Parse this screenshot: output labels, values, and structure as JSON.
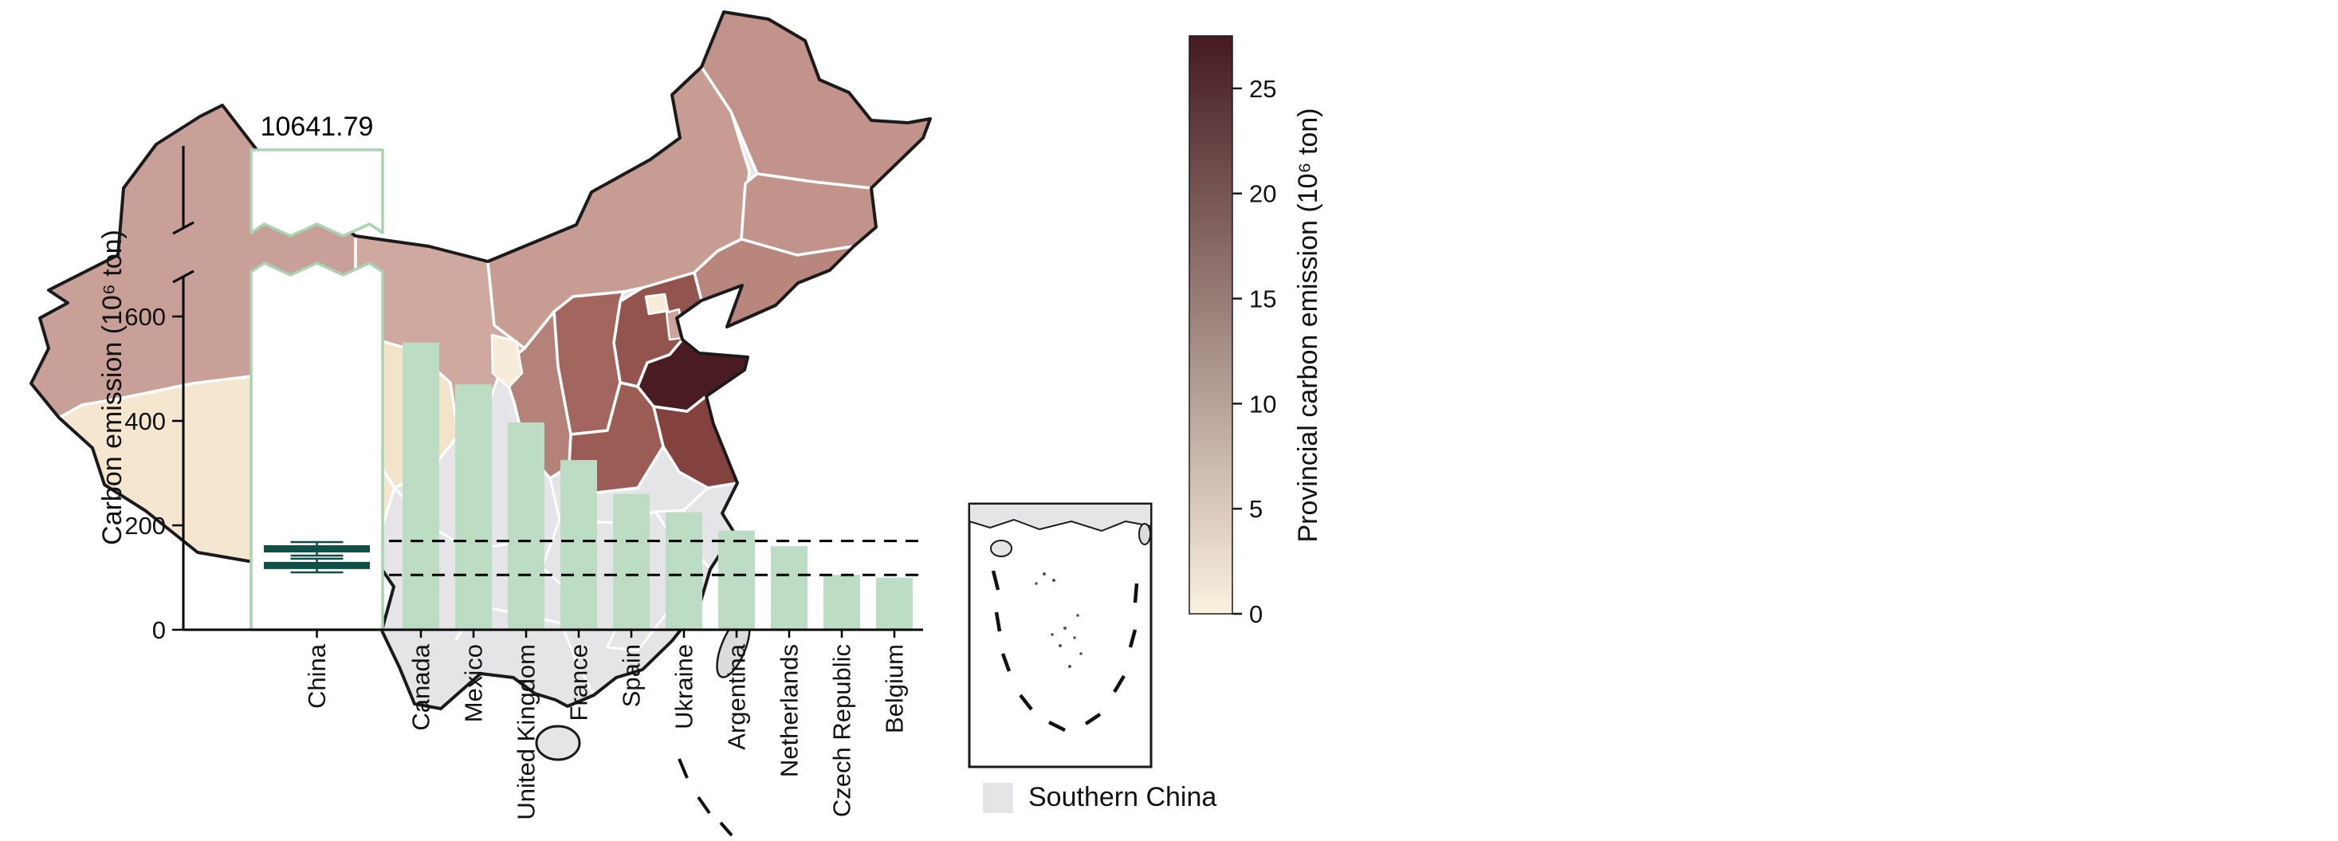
{
  "chart_data": [
    {
      "type": "heatmap",
      "subtype": "choropleth-map",
      "region_shown": "China",
      "colorbar_label": "Provincial carbon emission (10⁶ ton)",
      "colorbar_ticks": [
        0,
        5,
        10,
        15,
        20,
        25
      ],
      "colorbar_range": [
        0,
        27.5
      ],
      "legend": "Southern China",
      "regions": [
        {
          "name": "Xinjiang",
          "value": 9.5
        },
        {
          "name": "Tibet",
          "value": 2
        },
        {
          "name": "Qinghai",
          "value": 2
        },
        {
          "name": "Gansu",
          "value": 8.5
        },
        {
          "name": "Ningxia",
          "value": 1.5
        },
        {
          "name": "Inner Mongolia",
          "value": 10
        },
        {
          "name": "Heilongjiang",
          "value": 11
        },
        {
          "name": "Jilin",
          "value": 11
        },
        {
          "name": "Liaoning",
          "value": 12.5
        },
        {
          "name": "Hebei",
          "value": 18
        },
        {
          "name": "Beijing",
          "value": 1.5
        },
        {
          "name": "Tianjin",
          "value": 9
        },
        {
          "name": "Shanxi",
          "value": 16
        },
        {
          "name": "Shaanxi",
          "value": 13
        },
        {
          "name": "Henan",
          "value": 17
        },
        {
          "name": "Shandong",
          "value": 27
        },
        {
          "name": "Jiangsu",
          "value": 20
        },
        {
          "name": "Southern China",
          "value": null
        }
      ],
      "note": "province values estimated from colorbar shading"
    },
    {
      "type": "bar",
      "categories": [
        "China",
        "Canada",
        "Mexico",
        "United Kingdom",
        "France",
        "Spain",
        "Ukraine",
        "Argentina",
        "Netherlands",
        "Czech Republic",
        "Belgium"
      ],
      "values": [
        10641.79,
        550,
        470,
        397,
        325,
        260,
        225,
        190,
        160,
        105,
        100
      ],
      "ylabel": "Carbon emission (10⁶ ton)",
      "yticks": [
        0,
        200,
        400,
        600
      ],
      "axis_break": true,
      "china_value_label": "10641.79",
      "dashed_reference_lines": [
        170,
        105
      ],
      "china_mean_markers": [
        {
          "value": 155,
          "err": 13
        },
        {
          "value": 123,
          "err": 13
        }
      ],
      "grid": false,
      "legend_position": "none"
    }
  ],
  "figure": {
    "map": {
      "southern_fill": "#e5e4e7",
      "outline_color": "#1a1a1a",
      "border_color": "#ffffff",
      "island_fill": "#dcdbde",
      "colorbar": {
        "low": "#faf1de",
        "high": "#451a20"
      },
      "provinces": {
        "xinjiang": "#c9a097",
        "tibet": "#f4e6cf",
        "qinghai": "#f2e3ca",
        "gansu": "#cfa89f",
        "ningxia": "#f7ecd9",
        "inner-mongolia": "#c79d93",
        "heilongjiang": "#c1938a",
        "jilin": "#c1938a",
        "liaoning": "#b8867d",
        "hebei": "#94544e",
        "beijing": "#f7ecd9",
        "tianjin": "#cca49b",
        "shanxi": "#a2665f",
        "shaanxi": "#b5827a",
        "henan": "#9b5c56",
        "shandong": "#4a1c21",
        "jiangsu": "#84423f"
      }
    },
    "bar_chart": {
      "bar_fill": "#bcdcc4",
      "china_outline": "#a9d3b1",
      "marker_color": "#0f4f47",
      "dash_color": "#000000",
      "axis_color": "#000000",
      "text_color": "#111111"
    }
  }
}
